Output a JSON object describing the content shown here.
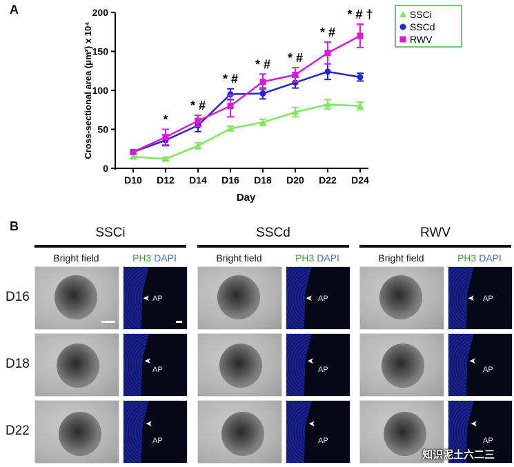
{
  "panel_a_label": "A",
  "panel_b_label": "B",
  "chart_data": {
    "type": "line",
    "xlabel": "Day",
    "ylabel": "Cross-sectional area (μm²) x 10⁴",
    "categories": [
      "D10",
      "D12",
      "D14",
      "D16",
      "D18",
      "D20",
      "D22",
      "D24"
    ],
    "ylim": [
      0,
      200
    ],
    "yticks": [
      "0",
      "50",
      "100",
      "150",
      "200"
    ],
    "legend_position": "top-right",
    "series": [
      {
        "name": "SSCi",
        "color": "#7ee85a",
        "marker": "triangle",
        "values": [
          15,
          12,
          29,
          51,
          59,
          72,
          82,
          80
        ],
        "err": [
          3,
          2,
          4,
          3,
          4,
          6,
          6,
          5
        ]
      },
      {
        "name": "SSCd",
        "color": "#2323d9",
        "marker": "circle",
        "values": [
          21,
          36,
          55,
          95,
          96,
          110,
          124,
          117
        ],
        "err": [
          2,
          7,
          8,
          7,
          7,
          7,
          10,
          5
        ]
      },
      {
        "name": "RWV",
        "color": "#d91ad9",
        "marker": "square",
        "values": [
          21,
          40,
          61,
          80,
          111,
          120,
          148,
          170
        ],
        "err": [
          2,
          10,
          7,
          14,
          10,
          9,
          14,
          15
        ]
      }
    ],
    "annotations": [
      "",
      "*",
      "* #",
      "* #",
      "* #",
      "* #",
      "* #",
      "* # †"
    ]
  },
  "panel_b": {
    "columns": [
      "SSCi",
      "SSCd",
      "RWV"
    ],
    "subheaders": {
      "bright_field": "Bright field",
      "ph3": "PH3",
      "dapi": "DAPI"
    },
    "rows": [
      "D16",
      "D18",
      "D22"
    ],
    "ap_label": "AP"
  },
  "watermark": "知识泥土六二三"
}
